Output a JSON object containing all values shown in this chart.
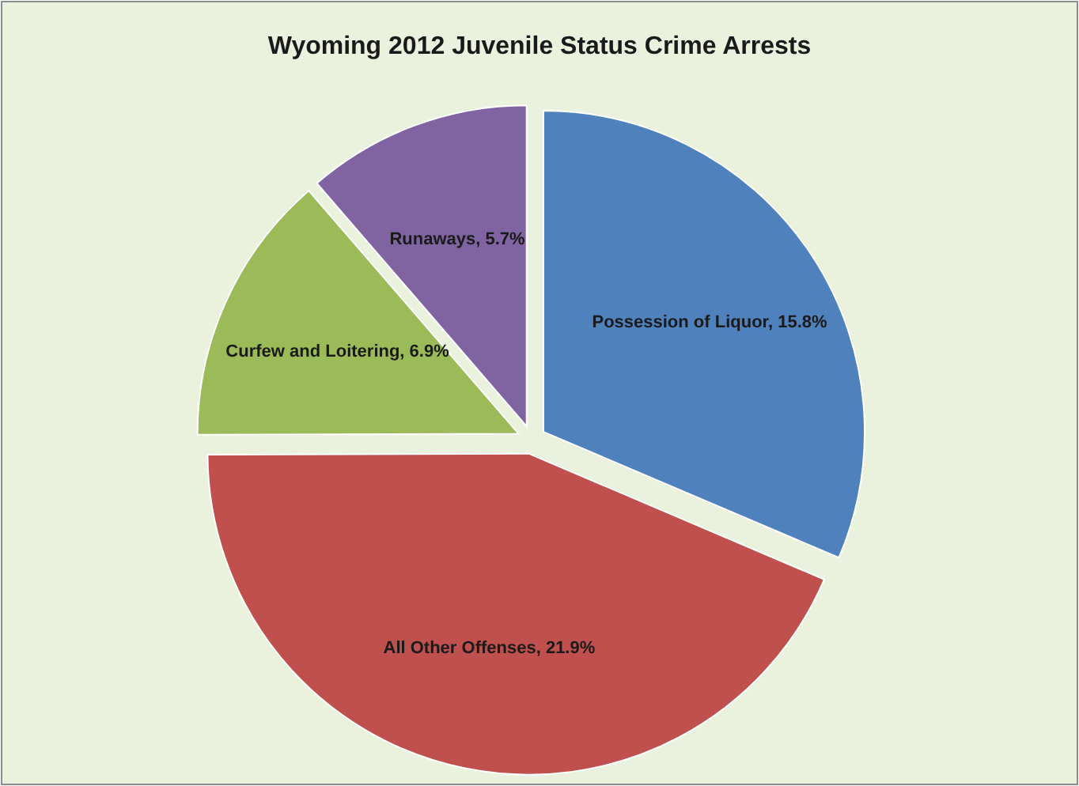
{
  "chart_data": {
    "type": "pie",
    "title": "Wyoming 2012 Juvenile Status Crime Arrests",
    "categories": [
      "Possession of Liquor",
      "All Other Offenses",
      "Curfew and Loitering",
      "Runaways"
    ],
    "values": [
      15.8,
      21.9,
      6.9,
      5.7
    ],
    "value_labels": [
      "15.8%",
      "21.9%",
      "6.9%",
      "5.7%"
    ],
    "colors": [
      "#4f81bd",
      "#c0504d",
      "#9bbb59",
      "#8064a2"
    ]
  }
}
